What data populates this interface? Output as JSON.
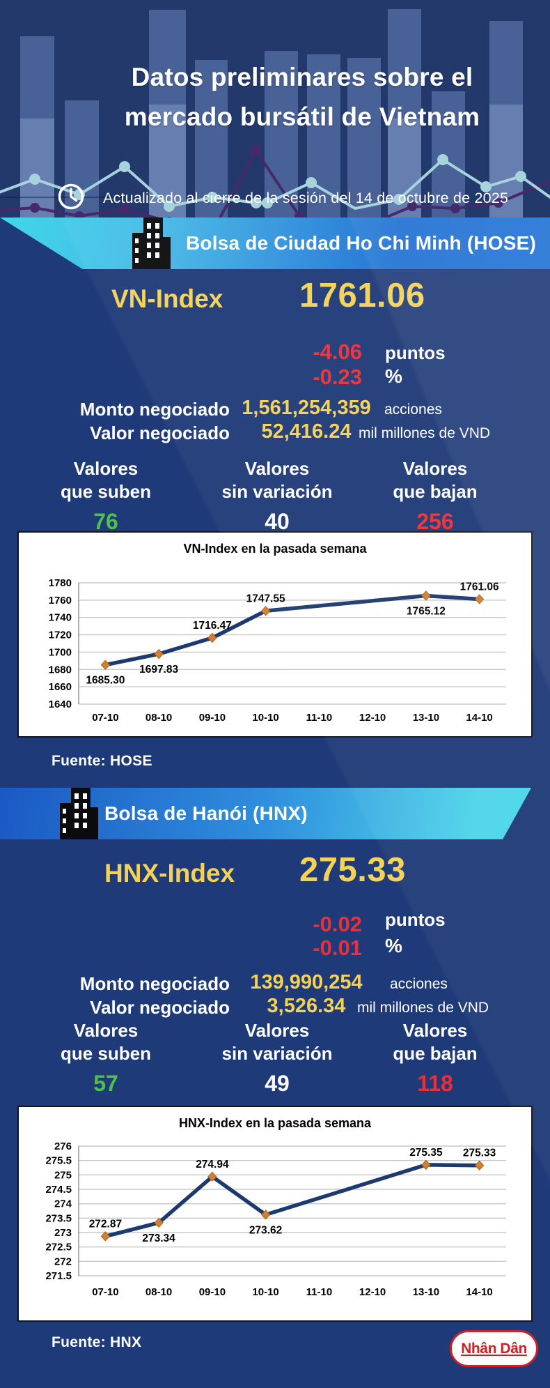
{
  "header": {
    "title_line1": "Datos preliminares sobre el",
    "title_line2": "mercado bursátil de Vietnam",
    "updated": "Actualizado al cierre de la sesión del 14 de octubre de 2025"
  },
  "colors": {
    "accent_yellow": "#f6d254",
    "negative_red": "#ee2e34",
    "positive_green": "#4fc14b",
    "banner_cyan": "#41d7e9",
    "banner_blue": "#1b66cc",
    "background_blue": "#1e3a78",
    "header_navy": "#24396b",
    "chart_line_navy": "#1c3a6e",
    "marker_orange": "#d4802e",
    "logo_red": "#cf2127"
  },
  "sections": [
    {
      "banner": "Bolsa de Ciudad Ho Chi Minh (HOSE)",
      "index_label": "VN-Index",
      "index_value": "1761.06",
      "change_points": "-4.06",
      "points_unit": "puntos",
      "change_percent": "-0.23",
      "percent_unit": "%",
      "volume_label": "Monto negociado",
      "volume_value": "1,561,254,359",
      "volume_unit": "acciones",
      "value_label": "Valor negociado",
      "value_value": "52,416.24",
      "value_unit": "mil millones de VND",
      "advancers_label1": "Valores",
      "advancers_label2": "que suben",
      "advancers_value": "76",
      "unchanged_label1": "Valores",
      "unchanged_label2": "sin variación",
      "unchanged_value": "40",
      "decliners_label1": "Valores",
      "decliners_label2": "que bajan",
      "decliners_value": "256",
      "source": "Fuente: HOSE"
    },
    {
      "banner": "Bolsa de Hanói (HNX)",
      "index_label": "HNX-Index",
      "index_value": "275.33",
      "change_points": "-0.02",
      "points_unit": "puntos",
      "change_percent": "-0.01",
      "percent_unit": "%",
      "volume_label": "Monto negociado",
      "volume_value": "139,990,254",
      "volume_unit": "acciones",
      "value_label": "Valor negociado",
      "value_value": "3,526.34",
      "value_unit": "mil millones de VND",
      "advancers_label1": "Valores",
      "advancers_label2": "que suben",
      "advancers_value": "57",
      "unchanged_label1": "Valores",
      "unchanged_label2": "sin variación",
      "unchanged_value": "49",
      "decliners_label1": "Valores",
      "decliners_label2": "que bajan",
      "decliners_value": "118",
      "source": "Fuente:  HNX"
    }
  ],
  "chart_data": [
    {
      "type": "line",
      "title": "VN-Index en la pasada semana",
      "categories": [
        "07-10",
        "08-10",
        "09-10",
        "10-10",
        "11-10",
        "12-10",
        "13-10",
        "14-10"
      ],
      "values": [
        1685.3,
        1697.83,
        1716.47,
        1747.55,
        null,
        null,
        1765.12,
        1761.06
      ],
      "point_labels": [
        "1685.30",
        "1697.83",
        "1716.47",
        "1747.55",
        null,
        null,
        "1765.12",
        "1761.06"
      ],
      "label_side": [
        "below",
        "below",
        "above",
        "above",
        null,
        null,
        "below",
        "above"
      ],
      "ylim": [
        1640,
        1780
      ],
      "yticks": [
        "1780",
        "1760",
        "1740",
        "1720",
        "1700",
        "1680",
        "1660",
        "1640"
      ],
      "grid": true,
      "legend": "none",
      "line_color": "#1c3a6e",
      "marker_color": "#d4802e"
    },
    {
      "type": "line",
      "title": "HNX-Index en la pasada semana",
      "categories": [
        "07-10",
        "08-10",
        "09-10",
        "10-10",
        "11-10",
        "12-10",
        "13-10",
        "14-10"
      ],
      "values": [
        272.87,
        273.34,
        274.94,
        273.62,
        null,
        null,
        275.35,
        275.33
      ],
      "point_labels": [
        "272.87",
        "273.34",
        "274.94",
        "273.62",
        null,
        null,
        "275.35",
        "275.33"
      ],
      "label_side": [
        "above",
        "below",
        "above",
        "below",
        null,
        null,
        "above",
        "above"
      ],
      "ylim": [
        271.5,
        276
      ],
      "yticks": [
        "276",
        "275.5",
        "275",
        "274.5",
        "274",
        "273.5",
        "273",
        "272.5",
        "272",
        "271.5"
      ],
      "grid": true,
      "legend": "none",
      "line_color": "#1c3a6e",
      "marker_color": "#d4802e"
    }
  ],
  "footer": {
    "logo": "Nhân Dân"
  }
}
